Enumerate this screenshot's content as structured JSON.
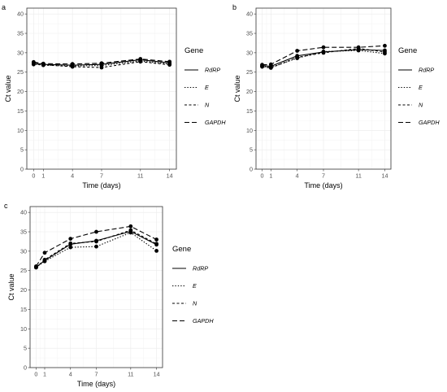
{
  "figure": {
    "background": "#ffffff",
    "grid_color": "#ebebeb",
    "line_color": "#000000"
  },
  "chart_data": [
    {
      "type": "line",
      "panel_label": "a",
      "xlabel": "Time (days)",
      "ylabel": "Ct value",
      "xticks": [
        0,
        1,
        4,
        7,
        11,
        14
      ],
      "yticks": [
        0,
        5,
        10,
        15,
        20,
        25,
        30,
        35,
        40
      ],
      "xlim": [
        -0.7,
        14.7
      ],
      "ylim": [
        0,
        41.5
      ],
      "grid": true,
      "legend": {
        "title": "Gene",
        "placement": "right"
      },
      "x": [
        0,
        1,
        4,
        7,
        11,
        14
      ],
      "series": [
        {
          "name": "RdRP",
          "dash": "solid",
          "values": [
            27.4,
            27.0,
            26.8,
            27.0,
            28.2,
            27.4
          ]
        },
        {
          "name": "E",
          "dash": "dotted",
          "values": [
            27.1,
            26.8,
            26.6,
            26.7,
            27.9,
            27.1
          ]
        },
        {
          "name": "N",
          "dash": "dashed",
          "values": [
            27.0,
            26.9,
            26.4,
            26.2,
            27.7,
            26.9
          ]
        },
        {
          "name": "GAPDH",
          "dash": "longdash",
          "values": [
            27.6,
            27.2,
            27.1,
            27.3,
            28.4,
            27.7
          ]
        }
      ]
    },
    {
      "type": "line",
      "panel_label": "b",
      "xlabel": "Time (days)",
      "ylabel": "Ct value",
      "xticks": [
        0,
        1,
        4,
        7,
        11,
        14
      ],
      "yticks": [
        0,
        5,
        10,
        15,
        20,
        25,
        30,
        35,
        40
      ],
      "xlim": [
        -0.7,
        14.7
      ],
      "ylim": [
        0,
        41.5
      ],
      "grid": true,
      "legend": {
        "title": "Gene",
        "placement": "right"
      },
      "x": [
        0,
        1,
        4,
        7,
        11,
        14
      ],
      "series": [
        {
          "name": "RdRP",
          "dash": "solid",
          "values": [
            26.7,
            26.5,
            29.2,
            30.2,
            30.8,
            30.6
          ]
        },
        {
          "name": "E",
          "dash": "dotted",
          "values": [
            26.5,
            26.2,
            28.6,
            30.3,
            30.6,
            29.8
          ]
        },
        {
          "name": "N",
          "dash": "dashed",
          "values": [
            26.4,
            26.1,
            28.8,
            30.0,
            31.1,
            30.2
          ]
        },
        {
          "name": "GAPDH",
          "dash": "longdash",
          "values": [
            26.9,
            27.0,
            30.5,
            31.4,
            31.4,
            31.8
          ]
        }
      ]
    },
    {
      "type": "line",
      "panel_label": "c",
      "xlabel": "Time (days)",
      "ylabel": "Ct value",
      "xticks": [
        0,
        1,
        4,
        7,
        11,
        14
      ],
      "yticks": [
        0,
        5,
        10,
        15,
        20,
        25,
        30,
        35,
        40
      ],
      "xlim": [
        -0.7,
        14.7
      ],
      "ylim": [
        0,
        41.5
      ],
      "grid": true,
      "legend": {
        "title": "Gene",
        "placement": "right"
      },
      "x": [
        0,
        1,
        4,
        7,
        11,
        14
      ],
      "series": [
        {
          "name": "RdRP",
          "dash": "solid",
          "values": [
            25.9,
            27.6,
            31.8,
            32.7,
            35.1,
            31.7
          ]
        },
        {
          "name": "E",
          "dash": "dotted",
          "values": [
            25.8,
            27.4,
            31.0,
            31.2,
            34.8,
            30.1
          ]
        },
        {
          "name": "N",
          "dash": "dashed",
          "values": [
            25.8,
            27.8,
            32.0,
            32.5,
            35.4,
            31.9
          ]
        },
        {
          "name": "GAPDH",
          "dash": "longdash",
          "values": [
            26.1,
            29.6,
            33.2,
            35.0,
            36.4,
            33.0
          ]
        }
      ]
    }
  ]
}
